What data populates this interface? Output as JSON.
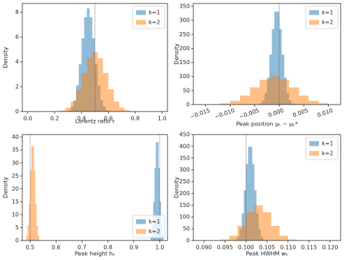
{
  "chart_data": [
    {
      "type": "histogram",
      "x_label": "Lorentz ratio r",
      "y_label": "Density",
      "xlim": [
        -0.04,
        1.04
      ],
      "xticks": [
        {
          "value": 0,
          "label": "0.0"
        },
        0.2,
        0.4,
        0.6,
        0.8,
        {
          "value": 1,
          "label": "1.0"
        }
      ],
      "ylim": [
        0,
        8.7
      ],
      "yticks": [
        0,
        2,
        4,
        6,
        8
      ],
      "reference_lines": [
        0.5
      ],
      "legend": "upper right",
      "series": [
        {
          "name": "k=1",
          "color": "#1f77b4",
          "bins": [
            0.3,
            0.32,
            0.34,
            0.36,
            0.38,
            0.4,
            0.42,
            0.44,
            0.46,
            0.48,
            0.5,
            0.52,
            0.54,
            0.56,
            0.58,
            0.6
          ],
          "values": [
            0.1,
            0.4,
            0.9,
            2.1,
            3.8,
            5.9,
            7.6,
            8.3,
            7.6,
            5.9,
            3.8,
            2.1,
            0.9,
            0.4,
            0.1
          ]
        },
        {
          "name": "k=2",
          "color": "#ff7f0e",
          "bins": [
            0.2,
            0.24,
            0.28,
            0.32,
            0.36,
            0.4,
            0.44,
            0.48,
            0.52,
            0.56,
            0.6,
            0.64,
            0.68,
            0.72,
            0.76,
            0.8
          ],
          "values": [
            0.02,
            0.09,
            0.3,
            0.8,
            1.8,
            3.1,
            4.3,
            4.8,
            4.3,
            3.1,
            1.8,
            0.8,
            0.3,
            0.09,
            0.02
          ]
        }
      ]
    },
    {
      "type": "histogram",
      "x_label": "Peak position μₖ − μₖ*",
      "y_label": "Density",
      "xlim": [
        -0.0175,
        0.0125
      ],
      "xticks": [
        {
          "value": -0.015,
          "label": "−0.015"
        },
        {
          "value": -0.01,
          "label": "−0.010"
        },
        {
          "value": -0.005,
          "label": "−0.005"
        },
        {
          "value": 0,
          "label": "0.000"
        },
        {
          "value": 0.005,
          "label": "0.005"
        },
        {
          "value": 0.01,
          "label": "0.010"
        }
      ],
      "ylim": [
        0,
        360
      ],
      "yticks": [
        0,
        50,
        100,
        150,
        200,
        250,
        300,
        350
      ],
      "reference_lines": [
        0
      ],
      "legend": "upper right",
      "series": [
        {
          "name": "k=1",
          "color": "#1f77b4",
          "bins": [
            -0.004,
            -0.0035,
            -0.003,
            -0.0025,
            -0.002,
            -0.0015,
            -0.001,
            -0.0005,
            0,
            0.0005,
            0.001,
            0.0015,
            0.002,
            0.0025,
            0.003
          ],
          "values": [
            4,
            15,
            41,
            96,
            178,
            269,
            331,
            331,
            269,
            178,
            96,
            41,
            15,
            4
          ]
        },
        {
          "name": "k=2",
          "color": "#ff7f0e",
          "bins": [
            -0.016,
            -0.014,
            -0.012,
            -0.01,
            -0.008,
            -0.006,
            -0.004,
            -0.002,
            0,
            0.002,
            0.004,
            0.006,
            0.008,
            0.01,
            0.012
          ],
          "values": [
            0.2,
            1.1,
            4.4,
            13.5,
            32,
            61,
            88,
            100,
            88,
            61,
            32,
            13.5,
            4.4,
            1.1
          ]
        }
      ]
    },
    {
      "type": "histogram",
      "x_label": "Peak height hₖ",
      "y_label": "Density",
      "xlim": [
        0.47,
        1.03
      ],
      "xticks": [
        0.5,
        0.6,
        0.7,
        0.8,
        0.9,
        {
          "value": 1,
          "label": "1.0"
        }
      ],
      "ylim": [
        0,
        41
      ],
      "yticks": [
        0,
        5,
        10,
        15,
        20,
        25,
        30,
        35,
        40
      ],
      "reference_lines": [
        0.5,
        1
      ],
      "legend": "lower right",
      "series": [
        {
          "name": "k=1",
          "color": "#1f77b4",
          "bins": [
            0.965,
            0.97,
            0.975,
            0.98,
            0.985,
            0.99,
            0.995,
            1.0,
            1.005,
            1.01,
            1.015
          ],
          "values": [
            1.8,
            6,
            15,
            28,
            38,
            38,
            28,
            15,
            6,
            1.8
          ]
        },
        {
          "name": "k=2",
          "color": "#ff7f0e",
          "bins": [
            0.485,
            0.49,
            0.495,
            0.5,
            0.505,
            0.51,
            0.515,
            0.52,
            0.525,
            0.53,
            0.535
          ],
          "values": [
            1.7,
            5.7,
            14,
            27,
            36.5,
            36.5,
            27,
            14,
            5.7,
            1.7
          ]
        }
      ]
    },
    {
      "type": "histogram",
      "x_label": "Peak HWHM wₖ",
      "y_label": "Density",
      "xlim": [
        0.0875,
        0.1225
      ],
      "xticks": [
        {
          "value": 0.09,
          "label": "0.090"
        },
        0.095,
        {
          "value": 0.1,
          "label": "0.100"
        },
        0.105,
        {
          "value": 0.11,
          "label": "0.110"
        },
        0.115,
        {
          "value": 0.12,
          "label": "0.120"
        }
      ],
      "ylim": [
        0,
        450
      ],
      "yticks": [
        0,
        50,
        100,
        150,
        200,
        250,
        300,
        350,
        400,
        450
      ],
      "reference_lines": [
        0.1
      ],
      "legend": "upper right",
      "series": [
        {
          "name": "k=1",
          "color": "#1f77b4",
          "bins": [
            0.0975,
            0.098,
            0.0985,
            0.099,
            0.0995,
            0.1,
            0.1005,
            0.101,
            0.1015,
            0.102,
            0.1025,
            0.103,
            0.1035,
            0.104,
            0.1045
          ],
          "values": [
            5,
            18,
            50,
            115,
            213,
            324,
            398,
            398,
            324,
            213,
            115,
            50,
            18,
            5
          ]
        },
        {
          "name": "k=2",
          "color": "#ff7f0e",
          "bins": [
            0.092,
            0.094,
            0.096,
            0.098,
            0.1,
            0.102,
            0.104,
            0.106,
            0.108,
            0.11,
            0.112,
            0.114
          ],
          "values": [
            0.6,
            4.2,
            20,
            62,
            120,
            150,
            120,
            62,
            20,
            4.2,
            0.6
          ]
        }
      ]
    }
  ]
}
